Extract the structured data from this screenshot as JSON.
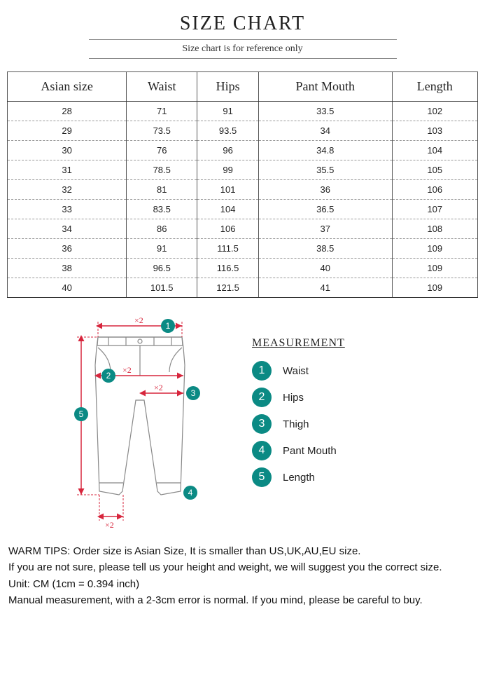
{
  "title": "SIZE CHART",
  "subtitle": "Size chart is for reference only",
  "table": {
    "columns": [
      "Asian size",
      "Waist",
      "Hips",
      "Pant Mouth",
      "Length"
    ],
    "rows": [
      [
        "28",
        "71",
        "91",
        "33.5",
        "102"
      ],
      [
        "29",
        "73.5",
        "93.5",
        "34",
        "103"
      ],
      [
        "30",
        "76",
        "96",
        "34.8",
        "104"
      ],
      [
        "31",
        "78.5",
        "99",
        "35.5",
        "105"
      ],
      [
        "32",
        "81",
        "101",
        "36",
        "106"
      ],
      [
        "33",
        "83.5",
        "104",
        "36.5",
        "107"
      ],
      [
        "34",
        "86",
        "106",
        "37",
        "108"
      ],
      [
        "36",
        "91",
        "111.5",
        "38.5",
        "109"
      ],
      [
        "38",
        "96.5",
        "116.5",
        "40",
        "109"
      ],
      [
        "40",
        "101.5",
        "121.5",
        "41",
        "109"
      ]
    ]
  },
  "legend": {
    "title": "MEASUREMENT",
    "badge_color": "#0b8a84",
    "items": [
      {
        "num": "1",
        "label": "Waist"
      },
      {
        "num": "2",
        "label": "Hips"
      },
      {
        "num": "3",
        "label": "Thigh"
      },
      {
        "num": "4",
        "label": "Pant Mouth"
      },
      {
        "num": "5",
        "label": "Length"
      }
    ]
  },
  "diagram": {
    "badge_color": "#0b8a84",
    "arrow_color": "#d7263d",
    "pants_stroke": "#888",
    "x2_label": "×2",
    "labels": {
      "b1": "1",
      "b2": "2",
      "b3": "3",
      "b4": "4",
      "b5": "5"
    }
  },
  "tips": {
    "line1": "WARM TIPS: Order size is Asian Size, It is smaller than US,UK,AU,EU size.",
    "line2": "If you are not sure, please tell us your height and weight, we will suggest you the correct size.",
    "line3": "Unit: CM (1cm = 0.394 inch)",
    "line4": "Manual measurement, with a 2-3cm error is normal. If you mind, please be careful to buy."
  }
}
